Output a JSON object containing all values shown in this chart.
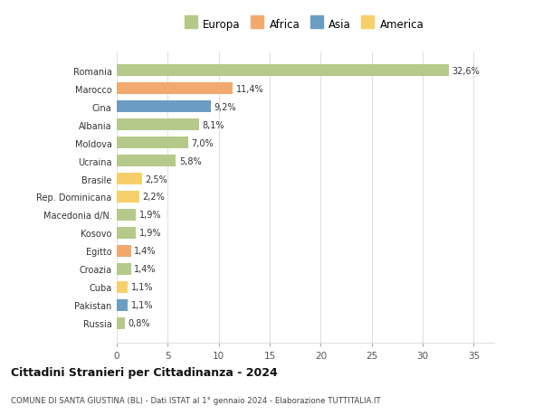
{
  "categories": [
    "Romania",
    "Marocco",
    "Cina",
    "Albania",
    "Moldova",
    "Ucraina",
    "Brasile",
    "Rep. Dominicana",
    "Macedonia d/N.",
    "Kosovo",
    "Egitto",
    "Croazia",
    "Cuba",
    "Pakistan",
    "Russia"
  ],
  "values": [
    32.6,
    11.4,
    9.2,
    8.1,
    7.0,
    5.8,
    2.5,
    2.2,
    1.9,
    1.9,
    1.4,
    1.4,
    1.1,
    1.1,
    0.8
  ],
  "labels": [
    "32,6%",
    "11,4%",
    "9,2%",
    "8,1%",
    "7,0%",
    "5,8%",
    "2,5%",
    "2,2%",
    "1,9%",
    "1,9%",
    "1,4%",
    "1,4%",
    "1,1%",
    "1,1%",
    "0,8%"
  ],
  "continents": [
    "Europa",
    "Africa",
    "Asia",
    "Europa",
    "Europa",
    "Europa",
    "America",
    "America",
    "Europa",
    "Europa",
    "Africa",
    "Europa",
    "America",
    "Asia",
    "Europa"
  ],
  "colors": {
    "Europa": "#b5c98a",
    "Africa": "#f2a96e",
    "Asia": "#6b9dc2",
    "America": "#f5d06a"
  },
  "title": "Cittadini Stranieri per Cittadinanza - 2024",
  "subtitle": "COMUNE DI SANTA GIUSTINA (BL) - Dati ISTAT al 1° gennaio 2024 - Elaborazione TUTTITALIA.IT",
  "xlim": [
    0,
    37
  ],
  "xticks": [
    0,
    5,
    10,
    15,
    20,
    25,
    30,
    35
  ],
  "background_color": "#ffffff",
  "plot_bg_color": "#ffffff",
  "grid_color": "#e0e0e0",
  "bar_height": 0.65
}
